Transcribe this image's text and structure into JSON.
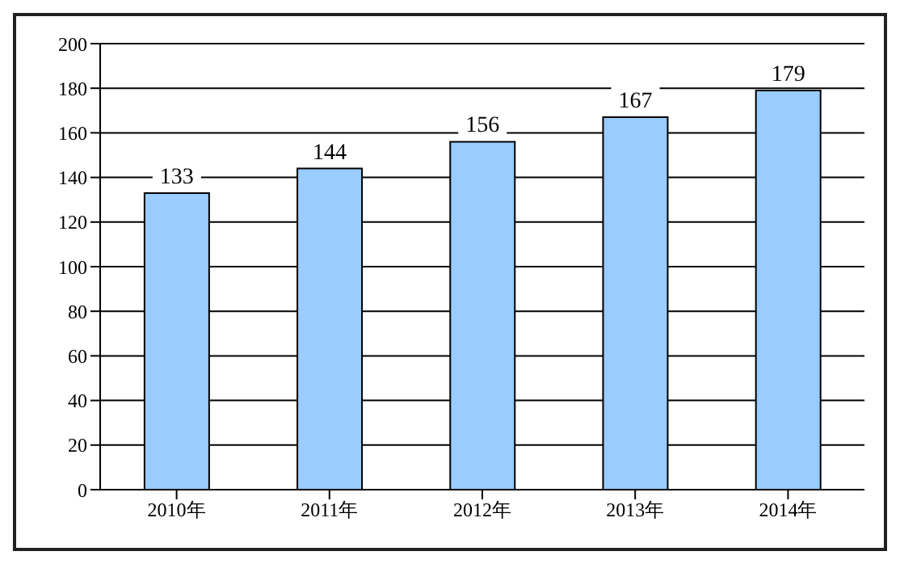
{
  "chart_data": {
    "type": "bar",
    "categories": [
      "2010年",
      "2011年",
      "2012年",
      "2013年",
      "2014年"
    ],
    "values": [
      133,
      144,
      156,
      167,
      179
    ],
    "color": "#99ccff",
    "ylim": [
      0,
      200
    ],
    "yticks": [
      0,
      20,
      40,
      60,
      80,
      100,
      120,
      140,
      160,
      180,
      200
    ],
    "grid": "y",
    "data_labels": true
  }
}
